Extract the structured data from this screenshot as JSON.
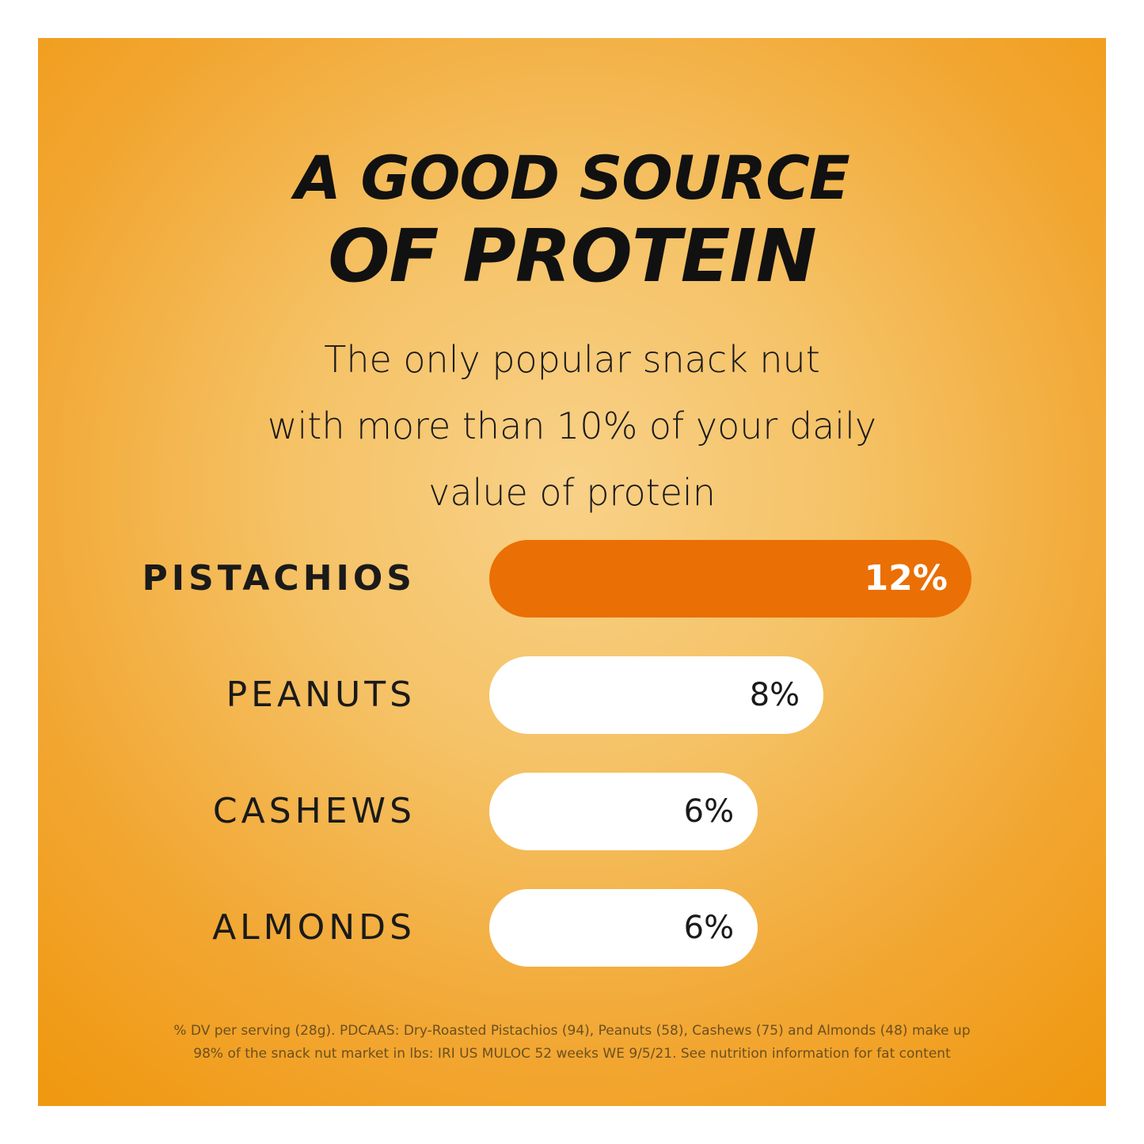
{
  "title_line1": "A GOOD SOURCE",
  "title_line2": "OF PROTEIN",
  "subtitle_lines": [
    "The only popular snack nut",
    "with more than 10% of your daily",
    "value of protein"
  ],
  "footnote_lines": [
    "% DV per serving (28g). PDCAAS: Dry-Roasted Pistachios (94), Peanuts (58), Cashews (75) and Almonds (48) make up",
    "98% of the snack nut market in lbs: IRI US MULOC 52 weeks WE 9/5/21. See nutrition information for fat content"
  ],
  "colors": {
    "highlight_bar": "#ea6f04",
    "other_bars": "#ffffff",
    "background": "#f2a733"
  },
  "chart_data": {
    "type": "bar",
    "orientation": "horizontal",
    "categories": [
      "PISTACHIOS",
      "PEANUTS",
      "CASHEWS",
      "ALMONDS"
    ],
    "values": [
      12,
      8,
      6,
      6
    ],
    "data_labels": [
      "12%",
      "8%",
      "6%",
      "6%"
    ],
    "highlighted": "PISTACHIOS",
    "unit": "%",
    "grid": false
  }
}
